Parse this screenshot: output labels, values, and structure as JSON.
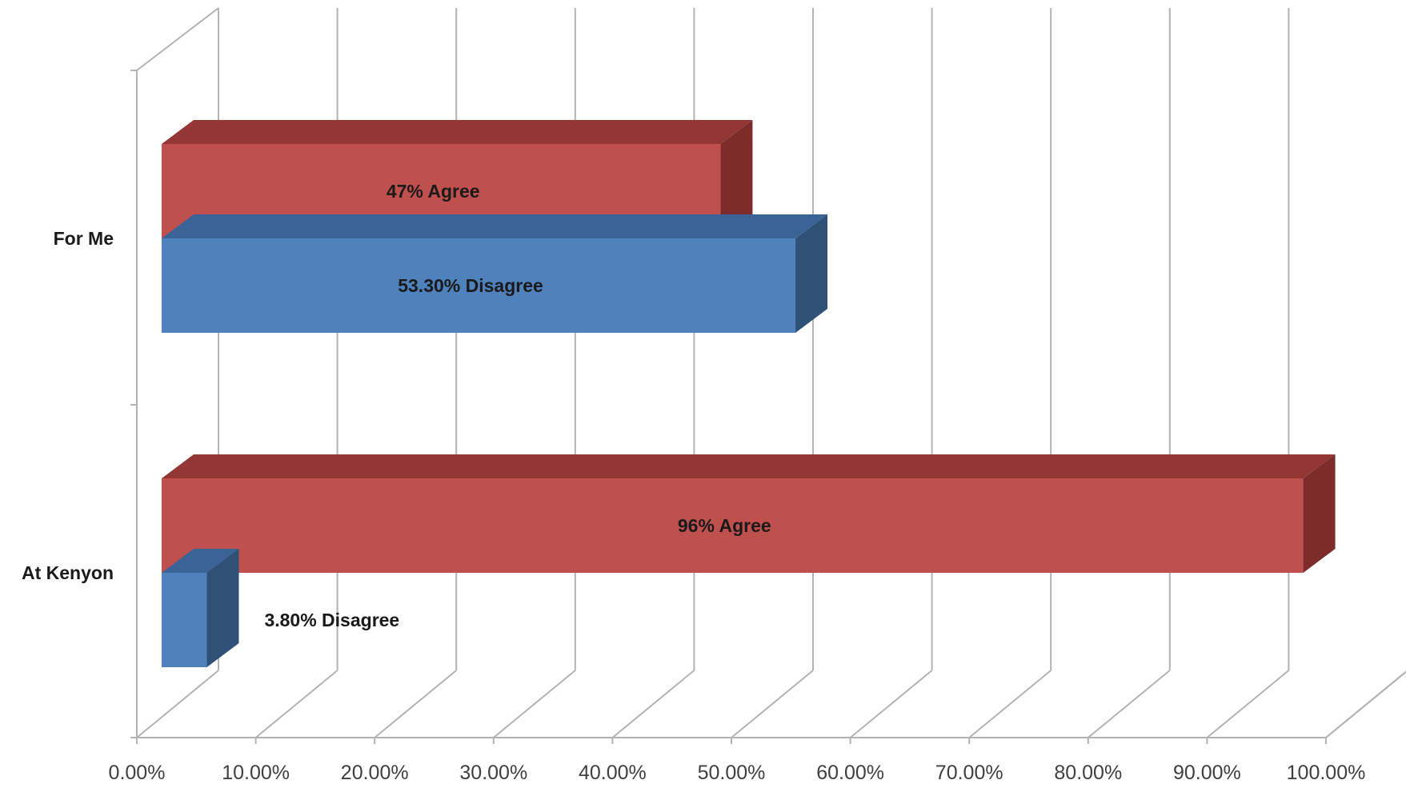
{
  "chart_data": {
    "type": "bar",
    "orientation": "horizontal",
    "style": "3d-clustered",
    "categories": [
      "For Me",
      "At Kenyon"
    ],
    "series": [
      {
        "key": "agree",
        "values": [
          47,
          96
        ],
        "labels": [
          "47% Agree",
          "96% Agree"
        ],
        "color": "#C0504D",
        "top_color": "#943634",
        "side_color": "#7B2C2B"
      },
      {
        "key": "disagree",
        "values": [
          53.3,
          3.8
        ],
        "labels": [
          "53.30%  Disagree",
          "3.80% Disagree"
        ],
        "color": "#4F81BD",
        "top_color": "#3B6496",
        "side_color": "#2F5077"
      }
    ],
    "x_ticks": [
      "0.00%",
      "10.00%",
      "20.00%",
      "30.00%",
      "40.00%",
      "50.00%",
      "60.00%",
      "70.00%",
      "80.00%",
      "90.00%",
      "100.00%"
    ],
    "xlim": [
      0,
      100
    ],
    "grid": true,
    "legend": "none",
    "title": "",
    "xlabel": "",
    "ylabel": ""
  }
}
